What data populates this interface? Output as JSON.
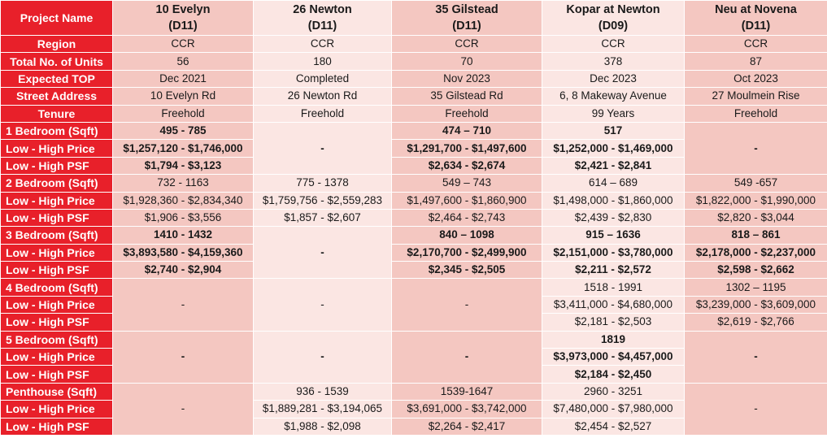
{
  "header": {
    "label": "Project Name",
    "projects": [
      {
        "name": "10 Evelyn",
        "district": "(D11)"
      },
      {
        "name": "26 Newton",
        "district": "(D11)"
      },
      {
        "name": "35 Gilstead",
        "district": "(D11)"
      },
      {
        "name": "Kopar at Newton",
        "district": "(D09)"
      },
      {
        "name": "Neu at Novena",
        "district": "(D11)"
      }
    ]
  },
  "info_rows": [
    {
      "label": "Region",
      "values": [
        "CCR",
        "CCR",
        "CCR",
        "CCR",
        "CCR"
      ]
    },
    {
      "label": "Total No. of Units",
      "values": [
        "56",
        "180",
        "70",
        "378",
        "87"
      ]
    },
    {
      "label": "Expected TOP",
      "values": [
        "Dec 2021",
        "Completed",
        "Nov 2023",
        "Dec 2023",
        "Oct 2023"
      ]
    },
    {
      "label": "Street Address",
      "values": [
        "10 Evelyn Rd",
        "26 Newton Rd",
        "35 Gilstead Rd",
        "6, 8 Makeway Avenue",
        "27 Moulmein Rise"
      ]
    },
    {
      "label": "Tenure",
      "values": [
        "Freehold",
        "Freehold",
        "Freehold",
        "99 Years",
        "Freehold"
      ]
    }
  ],
  "groups": [
    {
      "labels": [
        "1 Bedroom (Sqft)",
        "Low - High Price",
        "Low - High PSF"
      ],
      "cells": [
        {
          "values": [
            "495 - 785",
            "$1,257,120 - $1,746,000",
            "$1,794 - $3,123"
          ]
        },
        {
          "dash": "-"
        },
        {
          "values": [
            "474 – 710",
            "$1,291,700 - $1,497,600",
            "$2,634 - $2,674"
          ]
        },
        {
          "values": [
            "517",
            "$1,252,000 - $1,469,000",
            "$2,421 - $2,841"
          ]
        },
        {
          "dash": "-"
        }
      ]
    },
    {
      "labels": [
        "2 Bedroom (Sqft)",
        "Low - High Price",
        "Low - High PSF"
      ],
      "cells": [
        {
          "values": [
            "732 - 1163",
            "$1,928,360 - $2,834,340",
            "$1,906 - $3,556"
          ]
        },
        {
          "values": [
            "775 - 1378",
            "$1,759,756 - $2,559,283",
            "$1,857 - $2,607"
          ]
        },
        {
          "values": [
            "549 – 743",
            "$1,497,600 - $1,860,900",
            "$2,464 - $2,743"
          ]
        },
        {
          "values": [
            "614 – 689",
            "$1,498,000 - $1,860,000",
            "$2,439 - $2,830"
          ]
        },
        {
          "values": [
            "549 -657",
            "$1,822,000 - $1,990,000",
            "$2,820 - $3,044"
          ]
        }
      ]
    },
    {
      "labels": [
        "3 Bedroom (Sqft)",
        "Low - High Price",
        "Low - High PSF"
      ],
      "cells": [
        {
          "values": [
            "1410 - 1432",
            "$3,893,580 - $4,159,360",
            "$2,740 - $2,904"
          ]
        },
        {
          "dash": "-"
        },
        {
          "values": [
            "840 – 1098",
            "$2,170,700 - $2,499,900",
            "$2,345 - $2,505"
          ]
        },
        {
          "values": [
            "915 – 1636",
            "$2,151,000 - $3,780,000",
            "$2,211 - $2,572"
          ]
        },
        {
          "values": [
            "818 – 861",
            "$2,178,000 - $2,237,000",
            "$2,598 - $2,662"
          ]
        }
      ]
    },
    {
      "labels": [
        "4 Bedroom (Sqft)",
        "Low - High Price",
        "Low - High PSF"
      ],
      "cells": [
        {
          "dash": "-"
        },
        {
          "dash": "-"
        },
        {
          "dash": "-"
        },
        {
          "values": [
            "1518 - 1991",
            "$3,411,000 - $4,680,000",
            "$2,181 - $2,503"
          ]
        },
        {
          "values": [
            "1302 – 1195",
            "$3,239,000 - $3,609,000",
            "$2,619 - $2,766"
          ]
        }
      ]
    },
    {
      "labels": [
        "5 Bedroom (Sqft)",
        "Low - High Price",
        "Low - High PSF"
      ],
      "cells": [
        {
          "dash": "-"
        },
        {
          "dash": "-"
        },
        {
          "dash": "-"
        },
        {
          "values": [
            "1819",
            "$3,973,000 - $4,457,000",
            "$2,184 - $2,450"
          ]
        },
        {
          "dash": "-"
        }
      ]
    },
    {
      "labels": [
        "Penthouse (Sqft)",
        "Low - High Price",
        "Low - High PSF"
      ],
      "cells": [
        {
          "dash": "-"
        },
        {
          "values": [
            "936 - 1539",
            "$1,889,281 - $3,194,065",
            "$1,988 - $2,098"
          ]
        },
        {
          "values": [
            "1539-1647",
            "$3,691,000 - $3,742,000",
            "$2,264 - $2,417"
          ]
        },
        {
          "values": [
            "2960 - 3251",
            "$7,480,000 - $7,980,000",
            "$2,454 - $2,527"
          ]
        },
        {
          "dash": "-"
        }
      ]
    }
  ],
  "colors": {
    "label_bg": "#e8202a",
    "col_dark": "#f4c7c1",
    "col_light": "#fbe6e3"
  }
}
